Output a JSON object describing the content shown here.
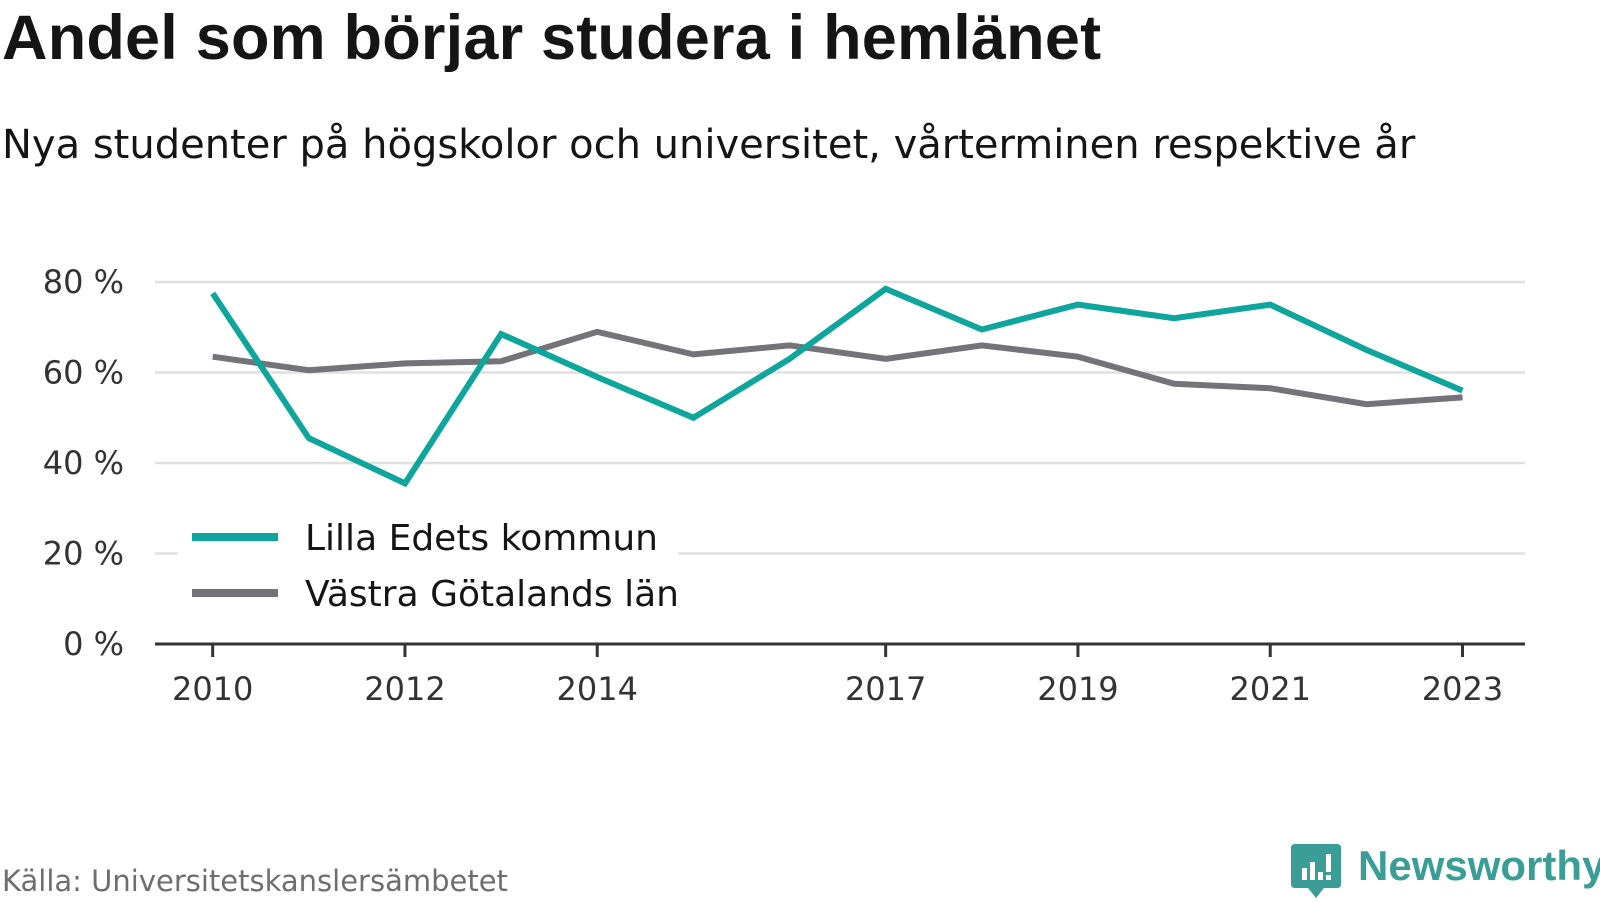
{
  "header": {
    "title": "Andel som börjar studera i hemlänet",
    "subtitle": "Nya studenter på högskolor och universitet, vårterminen respektive år"
  },
  "footer": {
    "source": "Källa: Universitetskanslersämbetet",
    "brand": "Newsworthy",
    "brand_color": "#3a9e97",
    "brand_icon": "bar-chart-speech-bubble-icon"
  },
  "chart_data": {
    "type": "line",
    "title": "Andel som börjar studera i hemlänet",
    "subtitle": "Nya studenter på högskolor och universitet, vårterminen respektive år",
    "xlabel": "",
    "ylabel": "",
    "x": [
      2010,
      2011,
      2012,
      2013,
      2014,
      2015,
      2016,
      2017,
      2018,
      2019,
      2020,
      2021,
      2022,
      2023
    ],
    "x_ticks": [
      2010,
      2012,
      2014,
      2017,
      2019,
      2021,
      2023
    ],
    "x_range": [
      2009.4,
      2023.65
    ],
    "ylim": [
      0,
      80
    ],
    "y_ticks": [
      0,
      20,
      40,
      60,
      80
    ],
    "y_tick_labels": [
      "0 %",
      "20 %",
      "40 %",
      "60 %",
      "80 %"
    ],
    "grid": true,
    "legend_position": "bottom-left",
    "series": [
      {
        "name": "Lilla Edets kommun",
        "color": "#0ea59c",
        "values": [
          77.5,
          45.5,
          35.5,
          68.5,
          59,
          50,
          63,
          78.5,
          69.5,
          75,
          72,
          75,
          65,
          56
        ]
      },
      {
        "name": "Västra Götalands län",
        "color": "#737379",
        "values": [
          63.5,
          60.5,
          62,
          62.5,
          69,
          64,
          66,
          63,
          66,
          63.5,
          57.5,
          56.5,
          53,
          54.5
        ]
      }
    ]
  }
}
